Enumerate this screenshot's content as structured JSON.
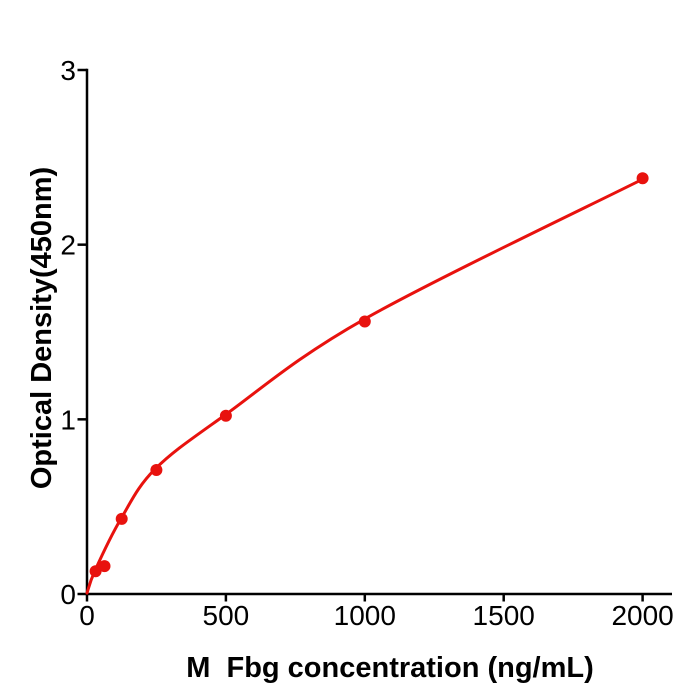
{
  "page": {
    "background": "#ffffff"
  },
  "chart_data": {
    "type": "scatter",
    "title": "",
    "xlabel": "M  Fbg concentration (ng/mL)",
    "ylabel": "Optical Density(450nm)",
    "x_range": [
      0,
      2105
    ],
    "y_range": [
      0,
      3
    ],
    "x_tick_values": [
      0,
      500,
      1000,
      1500,
      2000
    ],
    "x_tick_labels": [
      "0",
      "500",
      "1000",
      "1500",
      "2000"
    ],
    "y_tick_values": [
      0,
      1,
      2,
      3
    ],
    "y_tick_labels": [
      "0",
      "1",
      "2",
      "3"
    ],
    "grid": false,
    "legend": "none",
    "axis_color": "#000000",
    "text_color": "#000000",
    "accent_color": "#e8120e",
    "series": [
      {
        "name": "standard-points",
        "kind": "scatter",
        "color": "#e8120e",
        "marker": "circle",
        "marker_radius": 6,
        "points": [
          [
            31,
            0.13
          ],
          [
            63,
            0.16
          ],
          [
            125,
            0.43
          ],
          [
            250,
            0.71
          ],
          [
            500,
            1.02
          ],
          [
            1000,
            1.56
          ],
          [
            2000,
            2.38
          ]
        ]
      },
      {
        "name": "fit-curve",
        "kind": "line",
        "color": "#e8120e",
        "line_width": 3,
        "points": [
          [
            0,
            0.005
          ],
          [
            29,
            0.135
          ],
          [
            122,
            0.43
          ],
          [
            245,
            0.715
          ],
          [
            497,
            1.025
          ],
          [
            1000,
            1.575
          ],
          [
            2000,
            2.375
          ]
        ]
      }
    ]
  }
}
